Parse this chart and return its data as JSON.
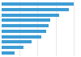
{
  "values": [
    100,
    93,
    80,
    68,
    65,
    62,
    55,
    42,
    30,
    18
  ],
  "bar_color": "#3d9dd5",
  "background_color": "#ffffff",
  "grid_color": "#e0e0e0",
  "xlim": [
    0,
    108
  ]
}
